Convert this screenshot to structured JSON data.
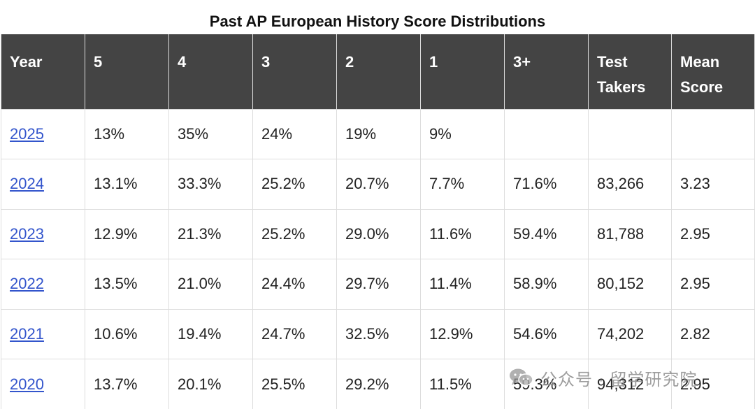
{
  "title": "Past AP European History Score Distributions",
  "table": {
    "headers": [
      "Year",
      "5",
      "4",
      "3",
      "2",
      "1",
      "3+",
      "Test Takers",
      "Mean Score"
    ],
    "rows": [
      {
        "year": "2025",
        "s5": "13%",
        "s4": "35%",
        "s3": "24%",
        "s2": "19%",
        "s1": "9%",
        "s3plus": "",
        "takers": "",
        "mean": ""
      },
      {
        "year": "2024",
        "s5": "13.1%",
        "s4": "33.3%",
        "s3": "25.2%",
        "s2": "20.7%",
        "s1": "7.7%",
        "s3plus": "71.6%",
        "takers": "83,266",
        "mean": "3.23"
      },
      {
        "year": "2023",
        "s5": "12.9%",
        "s4": "21.3%",
        "s3": "25.2%",
        "s2": "29.0%",
        "s1": "11.6%",
        "s3plus": "59.4%",
        "takers": "81,788",
        "mean": "2.95"
      },
      {
        "year": "2022",
        "s5": "13.5%",
        "s4": "21.0%",
        "s3": "24.4%",
        "s2": "29.7%",
        "s1": "11.4%",
        "s3plus": "58.9%",
        "takers": "80,152",
        "mean": "2.95"
      },
      {
        "year": "2021",
        "s5": "10.6%",
        "s4": "19.4%",
        "s3": "24.7%",
        "s2": "32.5%",
        "s1": "12.9%",
        "s3plus": "54.6%",
        "takers": "74,202",
        "mean": "2.82"
      },
      {
        "year": "2020",
        "s5": "13.7%",
        "s4": "20.1%",
        "s3": "25.5%",
        "s2": "29.2%",
        "s1": "11.5%",
        "s3plus": "59.3%",
        "takers": "94,312",
        "mean": "2.95"
      }
    ]
  },
  "watermark": {
    "text": "公众号 · 留学研究院",
    "icon": "wechat-icon"
  }
}
